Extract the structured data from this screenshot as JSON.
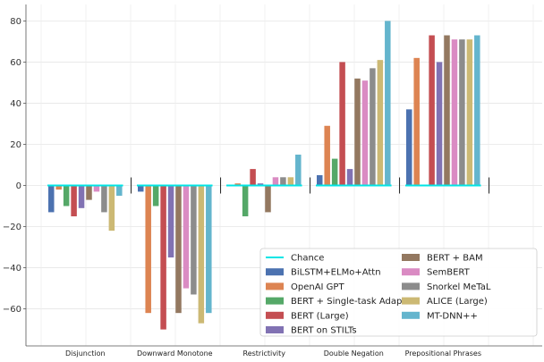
{
  "chart_data": {
    "type": "bar",
    "categories": [
      "Disjunction",
      "Downward Monotone",
      "Restrictivity",
      "Double Negation",
      "Prepositional Phrases"
    ],
    "ylim": [
      -78,
      88
    ],
    "yticks": [
      -60,
      -40,
      -20,
      0,
      20,
      40,
      60,
      80
    ],
    "grid": true,
    "legend_position": "bottom-right",
    "chance_level": 0,
    "series": [
      {
        "name": "BiLSTM+ELMo+Attn",
        "color": "#4c72b0",
        "values": [
          -13,
          -3,
          0,
          5,
          37
        ]
      },
      {
        "name": "OpenAI GPT",
        "color": "#dd8452",
        "values": [
          -2,
          -62,
          1,
          29,
          62
        ]
      },
      {
        "name": "BERT + Single-task Adapters",
        "color": "#55a868",
        "values": [
          -10,
          -10,
          -15,
          13,
          0
        ]
      },
      {
        "name": "BERT (Large)",
        "color": "#c44e52",
        "values": [
          -15,
          -70,
          8,
          60,
          73
        ]
      },
      {
        "name": "BERT on STILTs",
        "color": "#8172b3",
        "values": [
          -11,
          -35,
          1,
          8,
          60
        ]
      },
      {
        "name": "BERT + BAM",
        "color": "#937860",
        "values": [
          -7,
          -62,
          -13,
          52,
          73
        ]
      },
      {
        "name": "SemBERT",
        "color": "#da8bc3",
        "values": [
          -3,
          -50,
          4,
          51,
          71
        ]
      },
      {
        "name": "Snorkel MeTaL",
        "color": "#8c8c8c",
        "values": [
          -13,
          -53,
          4,
          57,
          71
        ]
      },
      {
        "name": "ALICE (Large)",
        "color": "#ccb974",
        "values": [
          -22,
          -67,
          4,
          61,
          71
        ]
      },
      {
        "name": "MT-DNN++",
        "color": "#64b5cd",
        "values": [
          -5,
          -62,
          15,
          80,
          73
        ]
      }
    ],
    "legend": {
      "chance_label": "Chance",
      "chance_color": "#00e5e5"
    }
  }
}
